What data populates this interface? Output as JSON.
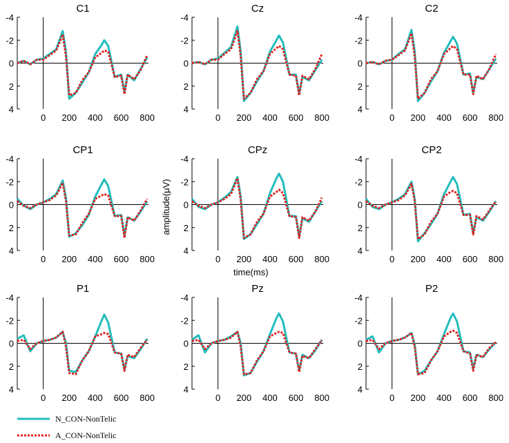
{
  "chart_data": {
    "type": "line",
    "title": "",
    "xlabel": "time(ms)",
    "ylabel": "amplitude(μV)",
    "xlim": [
      -200,
      810
    ],
    "ylim": [
      -4,
      4
    ],
    "y_reversed": true,
    "xticks": [
      "0",
      "200",
      "400",
      "600",
      "800"
    ],
    "yticks": [
      "-4",
      "-2",
      "0",
      "2",
      "4"
    ],
    "grid": false,
    "legend_position": "bottom-left",
    "series_meta": [
      {
        "name": "N_CON-NonTelic",
        "color": "#22bcbc",
        "style": "solid"
      },
      {
        "name": "A_CON-NonTelic",
        "color": "#e0201e",
        "style": "dotted"
      }
    ],
    "panels": [
      {
        "title": "C1",
        "x": [
          -200,
          -150,
          -100,
          -50,
          0,
          50,
          100,
          150,
          175,
          200,
          250,
          300,
          350,
          400,
          450,
          470,
          500,
          550,
          600,
          625,
          650,
          700,
          750,
          800
        ],
        "series": [
          [
            0,
            -0.2,
            0.1,
            -0.3,
            -0.4,
            -0.8,
            -1.2,
            -2.8,
            -1.0,
            3.1,
            2.6,
            1.7,
            0.8,
            -0.8,
            -1.6,
            -2.0,
            -1.5,
            1.2,
            1.0,
            2.5,
            1.0,
            1.5,
            0.5,
            -0.5
          ],
          [
            0,
            -0.2,
            0.1,
            -0.3,
            -0.3,
            -0.7,
            -1.1,
            -2.5,
            -0.6,
            2.8,
            2.6,
            1.5,
            0.8,
            -0.5,
            -0.9,
            -1.1,
            -1.0,
            1.2,
            1.1,
            2.7,
            1.0,
            1.4,
            0.6,
            -0.7
          ]
        ]
      },
      {
        "title": "Cz",
        "x": [
          -200,
          -150,
          -100,
          -50,
          0,
          50,
          100,
          150,
          175,
          200,
          250,
          300,
          350,
          400,
          450,
          470,
          500,
          550,
          600,
          625,
          650,
          700,
          750,
          800
        ],
        "series": [
          [
            0,
            -0.1,
            0.1,
            -0.3,
            -0.4,
            -0.9,
            -1.4,
            -3.2,
            -1.0,
            3.3,
            2.6,
            1.6,
            0.7,
            -1.0,
            -2.0,
            -2.4,
            -1.8,
            1.0,
            1.0,
            2.7,
            1.2,
            1.5,
            0.6,
            -0.3
          ],
          [
            0,
            -0.1,
            0.1,
            -0.3,
            -0.3,
            -0.8,
            -1.2,
            -2.8,
            -0.6,
            3.1,
            2.6,
            1.4,
            0.7,
            -0.8,
            -1.3,
            -1.5,
            -1.2,
            1.0,
            1.1,
            2.8,
            1.1,
            1.4,
            0.5,
            -0.8
          ]
        ]
      },
      {
        "title": "C2",
        "x": [
          -200,
          -150,
          -100,
          -50,
          0,
          50,
          100,
          150,
          175,
          200,
          250,
          300,
          350,
          400,
          450,
          470,
          500,
          550,
          600,
          625,
          650,
          700,
          750,
          800
        ],
        "series": [
          [
            0,
            -0.1,
            0.1,
            -0.2,
            -0.3,
            -0.8,
            -1.2,
            -2.9,
            -1.0,
            3.3,
            2.6,
            1.6,
            0.7,
            -0.9,
            -1.9,
            -2.3,
            -1.7,
            1.0,
            0.9,
            2.6,
            1.2,
            1.4,
            0.5,
            -0.4
          ],
          [
            0,
            -0.1,
            0.1,
            -0.2,
            -0.3,
            -0.7,
            -1.1,
            -2.6,
            -0.6,
            3.1,
            2.6,
            1.4,
            0.7,
            -0.8,
            -1.3,
            -1.5,
            -1.2,
            1.0,
            1.0,
            2.7,
            1.1,
            1.4,
            0.5,
            -0.8
          ]
        ]
      },
      {
        "title": "CP1",
        "x": [
          -200,
          -150,
          -100,
          -50,
          0,
          50,
          100,
          150,
          175,
          200,
          250,
          300,
          350,
          400,
          450,
          470,
          500,
          550,
          600,
          625,
          650,
          700,
          750,
          800
        ],
        "series": [
          [
            -0.5,
            0.1,
            0.4,
            0.0,
            -0.2,
            -0.5,
            -0.9,
            -2.1,
            -0.6,
            2.8,
            2.5,
            1.8,
            0.9,
            -0.7,
            -1.8,
            -2.2,
            -1.6,
            1.0,
            0.9,
            2.7,
            1.1,
            1.4,
            0.6,
            -0.3
          ],
          [
            -0.3,
            0.1,
            0.3,
            0.0,
            -0.2,
            -0.4,
            -0.8,
            -1.9,
            -0.3,
            2.7,
            2.6,
            1.6,
            0.8,
            -0.5,
            -0.8,
            -0.9,
            -0.8,
            1.0,
            1.0,
            2.9,
            1.1,
            1.4,
            0.5,
            -0.5
          ]
        ]
      },
      {
        "title": "CPz",
        "x": [
          -200,
          -150,
          -100,
          -50,
          0,
          50,
          100,
          150,
          175,
          200,
          250,
          300,
          350,
          400,
          450,
          470,
          500,
          550,
          600,
          625,
          650,
          700,
          750,
          800
        ],
        "series": [
          [
            -0.5,
            0.2,
            0.4,
            0.0,
            -0.2,
            -0.6,
            -1.1,
            -2.4,
            -0.7,
            3.0,
            2.6,
            1.7,
            0.8,
            -1.0,
            -2.3,
            -2.7,
            -2.0,
            1.0,
            1.0,
            2.8,
            1.2,
            1.5,
            0.6,
            -0.3
          ],
          [
            -0.3,
            0.1,
            0.3,
            0.0,
            -0.2,
            -0.5,
            -0.9,
            -2.3,
            -0.4,
            2.9,
            2.6,
            1.5,
            0.8,
            -0.7,
            -1.1,
            -1.3,
            -1.0,
            1.0,
            1.1,
            2.9,
            1.1,
            1.4,
            0.6,
            -0.6
          ]
        ]
      },
      {
        "title": "CP2",
        "x": [
          -200,
          -150,
          -100,
          -50,
          0,
          50,
          100,
          150,
          175,
          200,
          250,
          300,
          350,
          400,
          450,
          470,
          500,
          550,
          600,
          625,
          650,
          700,
          750,
          800
        ],
        "series": [
          [
            -0.5,
            0.2,
            0.4,
            0.0,
            -0.2,
            -0.5,
            -0.9,
            -2.0,
            -0.5,
            3.2,
            2.5,
            1.7,
            0.8,
            -0.9,
            -2.0,
            -2.4,
            -1.8,
            0.9,
            0.8,
            2.5,
            1.1,
            1.4,
            0.6,
            -0.3
          ],
          [
            -0.3,
            0.1,
            0.3,
            0.0,
            -0.2,
            -0.4,
            -0.8,
            -1.8,
            -0.3,
            3.0,
            2.6,
            1.5,
            0.8,
            -0.7,
            -1.1,
            -1.2,
            -1.0,
            0.9,
            0.9,
            2.6,
            1.0,
            1.3,
            0.5,
            -0.3
          ]
        ]
      },
      {
        "title": "P1",
        "x": [
          -200,
          -150,
          -100,
          -50,
          0,
          50,
          100,
          150,
          175,
          200,
          250,
          300,
          350,
          400,
          450,
          470,
          500,
          550,
          600,
          625,
          650,
          700,
          750,
          800
        ],
        "series": [
          [
            -0.4,
            -0.7,
            0.7,
            0.0,
            -0.2,
            -0.3,
            -0.5,
            -1.0,
            0.0,
            2.4,
            2.5,
            1.5,
            0.7,
            -0.6,
            -2.0,
            -2.5,
            -1.8,
            0.8,
            0.9,
            2.3,
            1.1,
            1.3,
            0.5,
            -0.4
          ],
          [
            -0.2,
            -0.3,
            0.5,
            0.0,
            -0.2,
            -0.3,
            -0.5,
            -1.0,
            0.3,
            2.6,
            2.7,
            1.5,
            0.7,
            -0.6,
            -0.8,
            -0.9,
            -0.8,
            0.8,
            0.9,
            2.4,
            1.0,
            1.2,
            0.4,
            -0.3
          ]
        ]
      },
      {
        "title": "Pz",
        "x": [
          -200,
          -150,
          -100,
          -50,
          0,
          50,
          100,
          150,
          175,
          200,
          250,
          300,
          350,
          400,
          450,
          470,
          500,
          550,
          600,
          625,
          650,
          700,
          750,
          800
        ],
        "series": [
          [
            -0.3,
            -0.7,
            0.8,
            0.0,
            -0.2,
            -0.3,
            -0.6,
            -1.0,
            0.0,
            2.8,
            2.6,
            1.6,
            0.7,
            -0.8,
            -2.2,
            -2.6,
            -1.9,
            0.8,
            0.9,
            2.4,
            1.0,
            1.3,
            0.6,
            -0.3
          ],
          [
            -0.2,
            -0.3,
            0.5,
            0.0,
            -0.2,
            -0.3,
            -0.5,
            -1.0,
            0.3,
            2.7,
            2.6,
            1.5,
            0.7,
            -0.6,
            -0.9,
            -1.0,
            -0.9,
            0.8,
            0.9,
            2.5,
            1.1,
            1.3,
            0.5,
            -0.3
          ]
        ]
      },
      {
        "title": "P2",
        "x": [
          -200,
          -150,
          -100,
          -50,
          0,
          50,
          100,
          150,
          175,
          200,
          250,
          300,
          350,
          400,
          450,
          470,
          500,
          550,
          600,
          625,
          650,
          700,
          750,
          800
        ],
        "series": [
          [
            -0.3,
            -0.6,
            0.8,
            0.0,
            -0.2,
            -0.3,
            -0.5,
            -0.9,
            0.1,
            2.7,
            2.4,
            1.5,
            0.7,
            -0.8,
            -2.2,
            -2.6,
            -1.9,
            0.7,
            0.8,
            2.2,
            1.0,
            1.2,
            0.5,
            -0.1
          ],
          [
            -0.2,
            -0.3,
            0.5,
            0.0,
            -0.2,
            -0.3,
            -0.5,
            -0.9,
            0.3,
            2.7,
            2.6,
            1.5,
            0.7,
            -0.6,
            -1.0,
            -1.1,
            -0.9,
            0.7,
            0.9,
            2.4,
            1.0,
            1.2,
            0.4,
            -0.1
          ]
        ]
      }
    ]
  }
}
